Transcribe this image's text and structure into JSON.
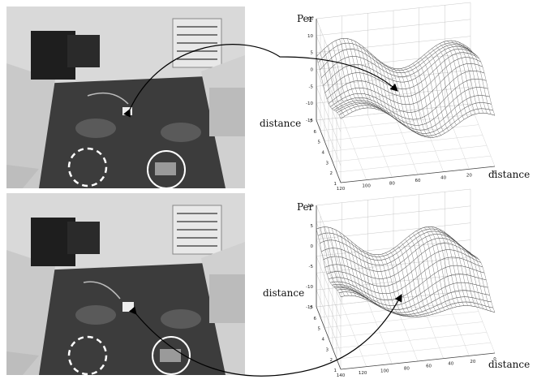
{
  "panels": [
    {
      "id": "top",
      "plot": {
        "zlabel": "Per",
        "ylabel": "distance",
        "xlabel": "distance",
        "zticks": [
          "15",
          "10",
          "5",
          "0",
          "-5",
          "-10",
          "-15"
        ],
        "yticks": [
          "1",
          "2",
          "3",
          "4",
          "5",
          "6",
          "7"
        ],
        "xticks": [
          "120",
          "100",
          "80",
          "60",
          "40",
          "20",
          "0"
        ]
      }
    },
    {
      "id": "bottom",
      "plot": {
        "zlabel": "Per",
        "ylabel": "distance",
        "xlabel": "distance",
        "zticks": [
          "10",
          "5",
          "0",
          "-5",
          "-10",
          "-15"
        ],
        "yticks": [
          "1",
          "2",
          "3",
          "4",
          "5",
          "6",
          "7"
        ],
        "xticks": [
          "140",
          "120",
          "100",
          "80",
          "60",
          "40",
          "20",
          "0"
        ]
      }
    }
  ]
}
